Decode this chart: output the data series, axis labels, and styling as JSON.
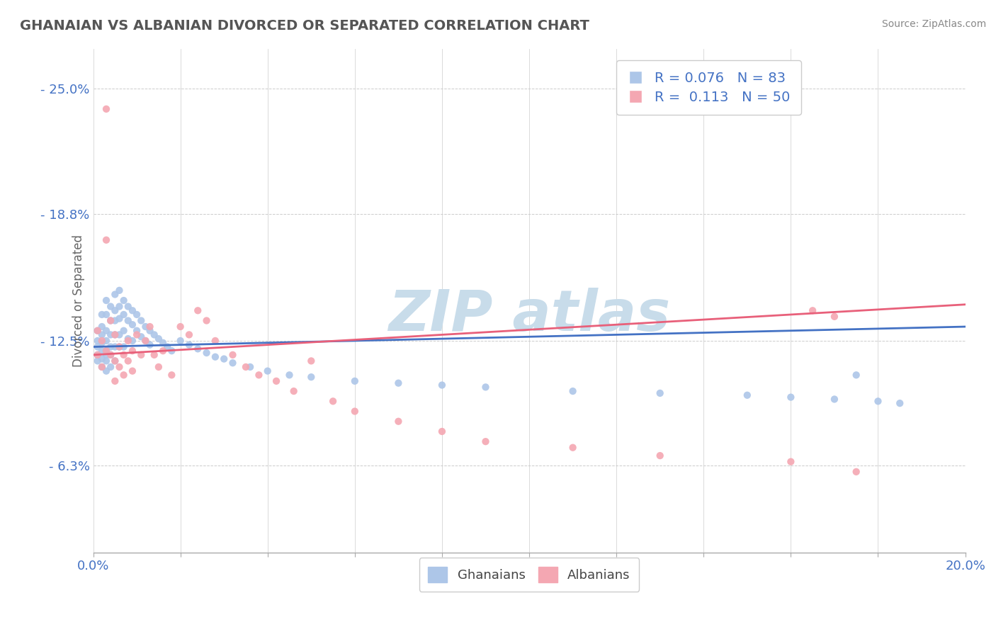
{
  "title": "GHANAIAN VS ALBANIAN DIVORCED OR SEPARATED CORRELATION CHART",
  "source_text": "Source: ZipAtlas.com",
  "ylabel": "Divorced or Separated",
  "xlim": [
    0.0,
    0.2
  ],
  "ylim": [
    0.02,
    0.27
  ],
  "xticks": [
    0.0,
    0.02,
    0.04,
    0.06,
    0.08,
    0.1,
    0.12,
    0.14,
    0.16,
    0.18,
    0.2
  ],
  "xticklabels": [
    "0.0%",
    "",
    "",
    "",
    "",
    "",
    "",
    "",
    "",
    "",
    "20.0%"
  ],
  "ytick_positions": [
    0.063,
    0.125,
    0.188,
    0.25
  ],
  "ytick_labels": [
    "6.3%",
    "12.5%",
    "18.8%",
    "25.0%"
  ],
  "ghanaian_color": "#adc6e8",
  "albanian_color": "#f4a7b2",
  "ghanaian_line_color": "#4472c4",
  "albanian_line_color": "#e8607a",
  "watermark_color": "#c8dcea",
  "ghanaian_R": 0.076,
  "albanian_R": 0.113,
  "ghanaian_N": 83,
  "albanian_N": 50,
  "gh_x": [
    0.001,
    0.001,
    0.001,
    0.001,
    0.001,
    0.002,
    0.002,
    0.002,
    0.002,
    0.002,
    0.002,
    0.002,
    0.003,
    0.003,
    0.003,
    0.003,
    0.003,
    0.003,
    0.003,
    0.003,
    0.004,
    0.004,
    0.004,
    0.004,
    0.004,
    0.004,
    0.005,
    0.005,
    0.005,
    0.005,
    0.005,
    0.005,
    0.006,
    0.006,
    0.006,
    0.006,
    0.006,
    0.007,
    0.007,
    0.007,
    0.007,
    0.008,
    0.008,
    0.008,
    0.009,
    0.009,
    0.009,
    0.01,
    0.01,
    0.011,
    0.011,
    0.012,
    0.012,
    0.013,
    0.013,
    0.014,
    0.015,
    0.016,
    0.017,
    0.018,
    0.02,
    0.022,
    0.024,
    0.026,
    0.028,
    0.03,
    0.032,
    0.036,
    0.04,
    0.045,
    0.05,
    0.06,
    0.07,
    0.08,
    0.09,
    0.11,
    0.13,
    0.15,
    0.16,
    0.17,
    0.175,
    0.18,
    0.185
  ],
  "gh_y": [
    0.125,
    0.13,
    0.118,
    0.122,
    0.115,
    0.132,
    0.128,
    0.12,
    0.116,
    0.138,
    0.124,
    0.112,
    0.145,
    0.138,
    0.13,
    0.125,
    0.12,
    0.118,
    0.115,
    0.11,
    0.142,
    0.135,
    0.128,
    0.122,
    0.118,
    0.112,
    0.148,
    0.14,
    0.135,
    0.128,
    0.122,
    0.115,
    0.15,
    0.142,
    0.136,
    0.128,
    0.122,
    0.145,
    0.138,
    0.13,
    0.122,
    0.142,
    0.135,
    0.126,
    0.14,
    0.133,
    0.125,
    0.138,
    0.13,
    0.135,
    0.127,
    0.132,
    0.125,
    0.13,
    0.123,
    0.128,
    0.126,
    0.124,
    0.122,
    0.12,
    0.125,
    0.123,
    0.121,
    0.119,
    0.117,
    0.116,
    0.114,
    0.112,
    0.11,
    0.108,
    0.107,
    0.105,
    0.104,
    0.103,
    0.102,
    0.1,
    0.099,
    0.098,
    0.097,
    0.096,
    0.108,
    0.095,
    0.094
  ],
  "al_x": [
    0.001,
    0.001,
    0.002,
    0.002,
    0.003,
    0.003,
    0.003,
    0.004,
    0.004,
    0.005,
    0.005,
    0.005,
    0.006,
    0.006,
    0.007,
    0.007,
    0.008,
    0.008,
    0.009,
    0.009,
    0.01,
    0.011,
    0.012,
    0.013,
    0.014,
    0.015,
    0.016,
    0.018,
    0.02,
    0.022,
    0.024,
    0.026,
    0.028,
    0.032,
    0.035,
    0.038,
    0.042,
    0.046,
    0.05,
    0.055,
    0.06,
    0.07,
    0.08,
    0.09,
    0.11,
    0.13,
    0.16,
    0.165,
    0.17,
    0.175
  ],
  "al_y": [
    0.13,
    0.118,
    0.125,
    0.112,
    0.24,
    0.175,
    0.12,
    0.135,
    0.118,
    0.128,
    0.115,
    0.105,
    0.122,
    0.112,
    0.118,
    0.108,
    0.125,
    0.115,
    0.12,
    0.11,
    0.128,
    0.118,
    0.125,
    0.132,
    0.118,
    0.112,
    0.12,
    0.108,
    0.132,
    0.128,
    0.14,
    0.135,
    0.125,
    0.118,
    0.112,
    0.108,
    0.105,
    0.1,
    0.115,
    0.095,
    0.09,
    0.085,
    0.08,
    0.075,
    0.072,
    0.068,
    0.065,
    0.14,
    0.137,
    0.06
  ],
  "gh_line_x": [
    0.0,
    0.2
  ],
  "gh_line_y": [
    0.122,
    0.132
  ],
  "al_line_x": [
    0.0,
    0.2
  ],
  "al_line_y": [
    0.118,
    0.143
  ]
}
